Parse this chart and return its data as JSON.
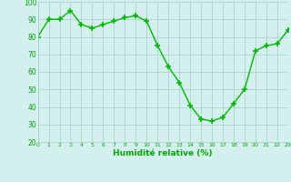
{
  "x": [
    0,
    1,
    2,
    3,
    4,
    5,
    6,
    7,
    8,
    9,
    10,
    11,
    12,
    13,
    14,
    15,
    16,
    17,
    18,
    19,
    20,
    21,
    22,
    23
  ],
  "y": [
    80,
    90,
    90,
    95,
    87,
    85,
    87,
    89,
    91,
    92,
    89,
    75,
    63,
    54,
    41,
    33,
    32,
    34,
    42,
    50,
    72,
    75,
    76,
    84
  ],
  "line_color": "#00bb00",
  "marker": "+",
  "bg_color": "#d4f0ee",
  "grid_color": "#aacccc",
  "xlabel": "Humidité relative (%)",
  "tick_color": "#00aa00",
  "xlabel_color": "#00aa00",
  "ylim": [
    20,
    100
  ],
  "xlim": [
    0,
    23
  ],
  "yticks": [
    20,
    30,
    40,
    50,
    60,
    70,
    80,
    90,
    100
  ],
  "xticks": [
    0,
    1,
    2,
    3,
    4,
    5,
    6,
    7,
    8,
    9,
    10,
    11,
    12,
    13,
    14,
    15,
    16,
    17,
    18,
    19,
    20,
    21,
    22,
    23
  ]
}
